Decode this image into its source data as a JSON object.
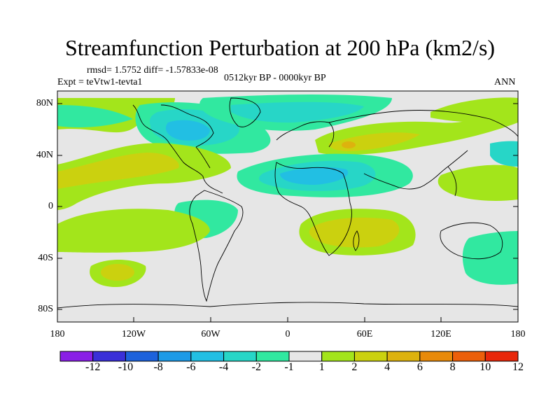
{
  "title": "Streamfunction Perturbation at 200 hPa (km2/s)",
  "subtitle": {
    "rmsd_line": "rmsd= 1.5752 diff= -1.57833e-08",
    "experiment": "Expt = teVtw1-tevta1",
    "period": "0512kyr BP - 0000kyr BP",
    "season": "ANN"
  },
  "axes": {
    "lat_labels": [
      "80N",
      "40N",
      "0",
      "40S",
      "80S"
    ],
    "lon_labels": [
      "180",
      "120W",
      "60W",
      "0",
      "60E",
      "120E",
      "180"
    ]
  },
  "colorbar": {
    "labels": [
      "-12",
      "-10",
      "-8",
      "-6",
      "-4",
      "-2",
      "-1",
      "1",
      "2",
      "4",
      "6",
      "8",
      "10",
      "12"
    ],
    "colors": [
      "#8a1fe6",
      "#3a2fd8",
      "#1d62dc",
      "#1d9ae6",
      "#22bfe3",
      "#27d6c7",
      "#31e8a0",
      "#e6e6e6",
      "#a3e51b",
      "#cbd10f",
      "#ddb20e",
      "#e88a0a",
      "#ec5f0a",
      "#e8270a"
    ]
  },
  "map_features": {
    "background_color": "#e6e6e6",
    "coast_color": "#000000"
  }
}
